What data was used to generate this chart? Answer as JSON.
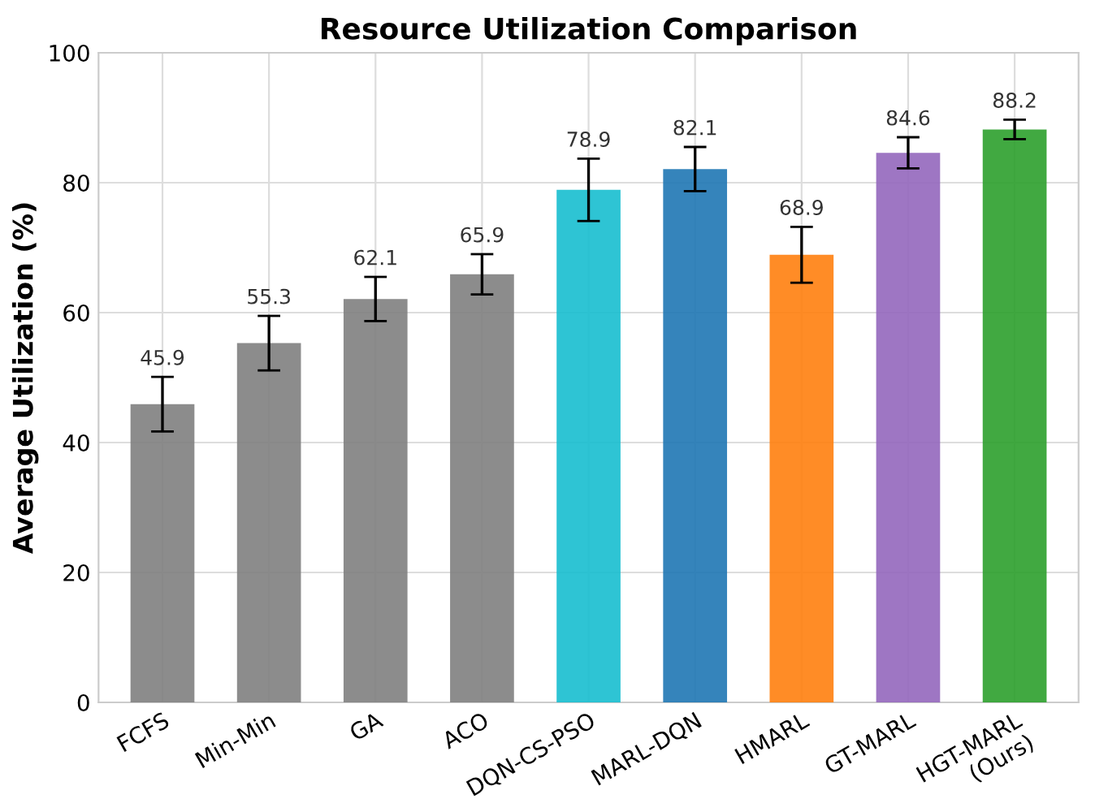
{
  "chart_data": {
    "type": "bar",
    "title": "Resource Utilization Comparison",
    "ylabel": "Average Utilization (%)",
    "categories": [
      "FCFS",
      "Min-Min",
      "GA",
      "ACO",
      "DQN-CS-PSO",
      "MARL-DQN",
      "HMARL",
      "GT-MARL",
      "HGT-MARL\n(Ours)"
    ],
    "values": [
      45.9,
      55.3,
      62.1,
      65.9,
      78.9,
      82.1,
      68.9,
      84.6,
      88.2
    ],
    "errors": [
      4.2,
      4.2,
      3.4,
      3.1,
      4.8,
      3.4,
      4.3,
      2.4,
      1.5
    ],
    "colors": [
      "#808080",
      "#808080",
      "#808080",
      "#808080",
      "#17becf",
      "#1f77b4",
      "#ff7f0e",
      "#9467bd",
      "#2ca02c"
    ],
    "ylim": [
      0,
      100
    ],
    "yticks": [
      0,
      20,
      40,
      60,
      80,
      100
    ],
    "grid": true,
    "data_labels": true
  }
}
